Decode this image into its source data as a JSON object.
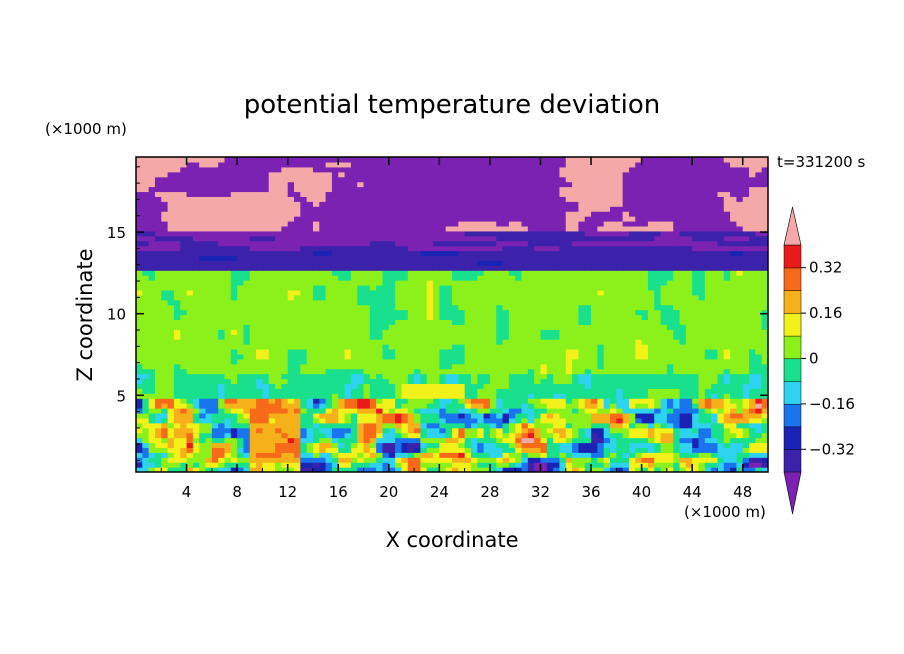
{
  "chart_data": {
    "type": "heatmap",
    "title": "potential temperature deviation",
    "xlabel": "X coordinate",
    "ylabel": "Z coordinate",
    "x_unit": "(×1000 m)",
    "y_unit": "(×1000 m)",
    "time_label": "t=331200 s",
    "xlim": [
      0,
      50
    ],
    "ylim": [
      0.3,
      19.6
    ],
    "x_ticks": [
      4,
      8,
      12,
      16,
      20,
      24,
      28,
      32,
      36,
      40,
      44,
      48
    ],
    "y_ticks": [
      5,
      10,
      15
    ],
    "colorbar": {
      "levels": [
        -0.4,
        -0.32,
        -0.24,
        -0.16,
        -0.08,
        0,
        0.08,
        0.16,
        0.24,
        0.32,
        0.4
      ],
      "tick_labels": [
        "0.32",
        "0.16",
        "0",
        "−0.16",
        "−0.32"
      ],
      "tick_values": [
        0.32,
        0.16,
        0,
        -0.16,
        -0.32
      ],
      "colors": [
        "#7b22b3",
        "#3c22aa",
        "#1a24b4",
        "#1a74ee",
        "#2ed3f0",
        "#18e08c",
        "#8cf11a",
        "#f2f21a",
        "#f6b11a",
        "#f66a1a",
        "#e81a1a",
        "#f5a8a8"
      ]
    },
    "bands": [
      {
        "z": [
          0.3,
          4.8
        ],
        "pattern": "mixed convective cells",
        "dominant_values": [
          -0.32,
          0.0,
          0.24
        ]
      },
      {
        "z": [
          4.8,
          12.8
        ],
        "pattern": "mostly near zero",
        "dominant_values": [
          0.0,
          0.08,
          -0.08
        ]
      },
      {
        "z": [
          12.8,
          15.0
        ],
        "pattern": "stratified negative",
        "dominant_values": [
          -0.32,
          -0.4
        ]
      },
      {
        "z": [
          15.0,
          19.6
        ],
        "pattern": "patches",
        "dominant_values": [
          -0.4,
          0.4
        ]
      }
    ]
  }
}
